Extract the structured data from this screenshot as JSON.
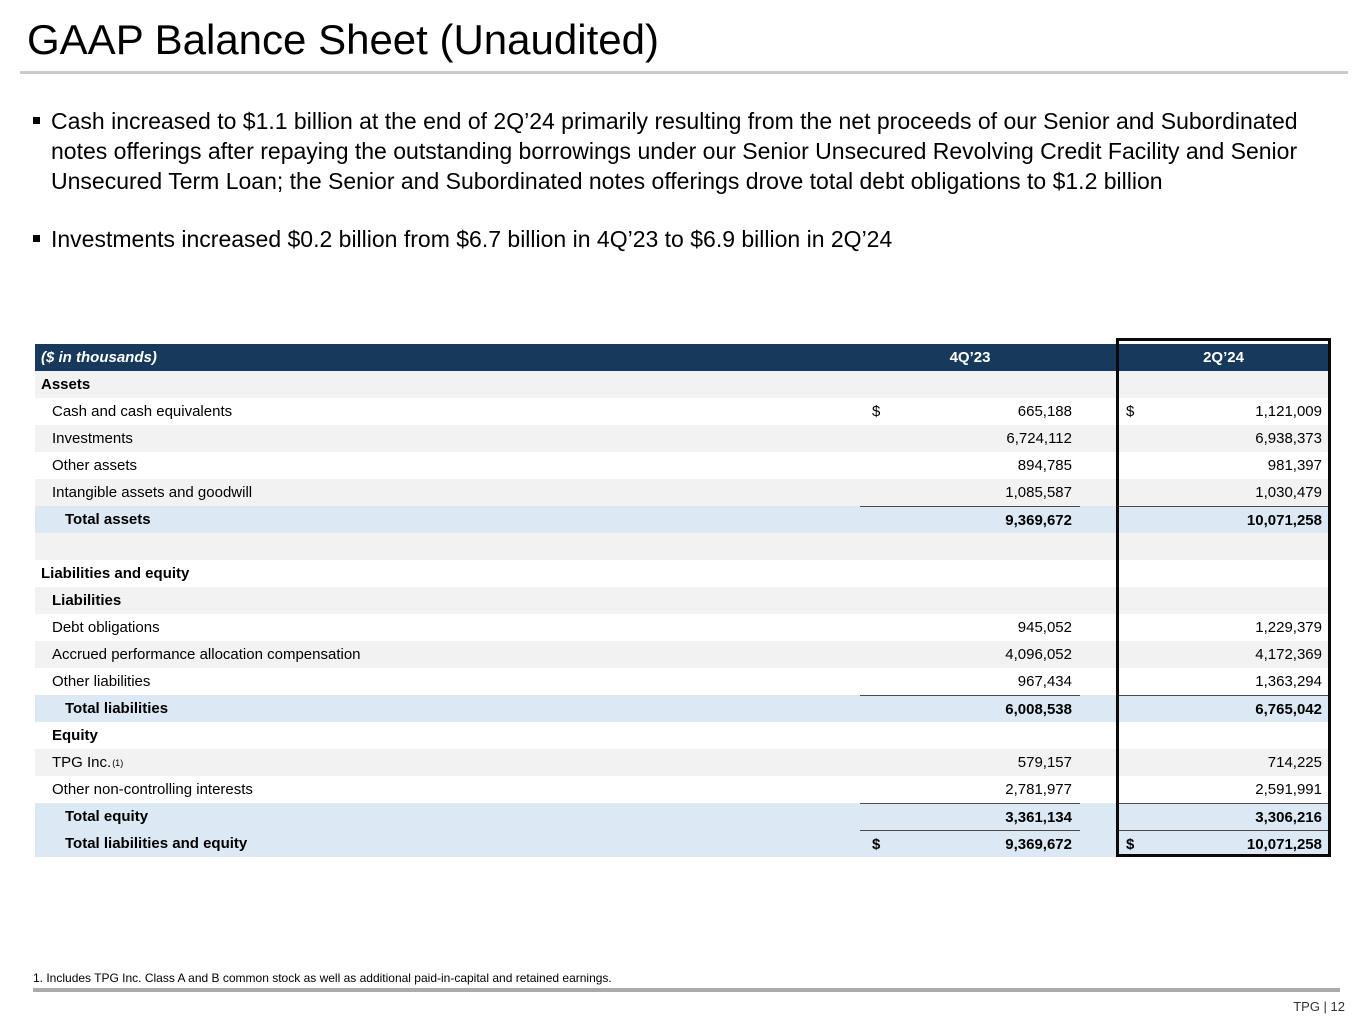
{
  "slide": {
    "title": "GAAP Balance Sheet (Unaudited)",
    "bullets": [
      {
        "text": "Cash increased to $1.1 billion at the end of 2Q’24 primarily resulting from the net proceeds of our Senior and Subordinated notes offerings after repaying the outstanding borrowings under our Senior Unsecured Revolving Credit Facility and Senior Unsecured Term Loan; the Senior and Subordinated notes offerings drove total debt obligations to $1.2 billion"
      },
      {
        "text": "Investments increased $0.2 billion from $6.7 billion in 4Q’23 to $6.9 billion in 2Q’24"
      }
    ],
    "table": {
      "header": {
        "label": "($ in thousands)",
        "col1": "4Q’23",
        "col2": "2Q’24"
      },
      "rows": [
        {
          "kind": "section",
          "shade": "gray",
          "label": "Assets"
        },
        {
          "kind": "item",
          "shade": "white",
          "label": "Cash and cash equivalents",
          "d1": "$",
          "v1": "665,188",
          "d2": "$",
          "v2": "1,121,009"
        },
        {
          "kind": "item",
          "shade": "gray",
          "label": "Investments",
          "v1": "6,724,112",
          "v2": "6,938,373"
        },
        {
          "kind": "item",
          "shade": "white",
          "label": "Other assets",
          "v1": "894,785",
          "v2": "981,397"
        },
        {
          "kind": "item",
          "shade": "gray",
          "label": "Intangible assets and goodwill",
          "v1": "1,085,587",
          "v2": "1,030,479"
        },
        {
          "kind": "total",
          "shade": "blue",
          "label": "Total assets",
          "v1": "9,369,672",
          "v2": "10,071,258",
          "topline": true
        },
        {
          "kind": "empty",
          "shade": "gray",
          "label": ""
        },
        {
          "kind": "section",
          "shade": "white",
          "label": "Liabilities and equity"
        },
        {
          "kind": "subsection",
          "shade": "gray",
          "label": "Liabilities"
        },
        {
          "kind": "item",
          "shade": "white",
          "label": "Debt obligations",
          "v1": "945,052",
          "v2": "1,229,379"
        },
        {
          "kind": "item",
          "shade": "gray",
          "label": "Accrued performance allocation compensation",
          "v1": "4,096,052",
          "v2": "4,172,369"
        },
        {
          "kind": "item",
          "shade": "white",
          "label": "Other liabilities",
          "v1": "967,434",
          "v2": "1,363,294"
        },
        {
          "kind": "total",
          "shade": "blue",
          "label": "Total liabilities",
          "v1": "6,008,538",
          "v2": "6,765,042",
          "topline": true
        },
        {
          "kind": "subsection",
          "shade": "white",
          "label": "Equity"
        },
        {
          "kind": "item",
          "shade": "gray",
          "label": "TPG Inc.",
          "sup": "(1)",
          "v1": "579,157",
          "v2": "714,225"
        },
        {
          "kind": "item",
          "shade": "white",
          "label": "Other non-controlling interests",
          "v1": "2,781,977",
          "v2": "2,591,991"
        },
        {
          "kind": "total",
          "shade": "blue",
          "label": "Total equity",
          "v1": "3,361,134",
          "v2": "3,306,216",
          "topline": true
        },
        {
          "kind": "total",
          "shade": "blue",
          "label": "Total liabilities and equity",
          "d1": "$",
          "v1": "9,369,672",
          "d2": "$",
          "v2": "10,071,258",
          "topline": true
        }
      ]
    },
    "footnote": "1. Includes TPG Inc. Class A and B common stock as well as additional paid-in-capital and retained earnings.",
    "page_label": "TPG | 12"
  },
  "colors": {
    "header_navy": "#17395B",
    "row_gray": "#F2F2F2",
    "total_blue": "#DCE9F5",
    "highlight_border": "#000000",
    "title_rule": "#CBCBCB",
    "footer_rule": "#ABABAB"
  }
}
